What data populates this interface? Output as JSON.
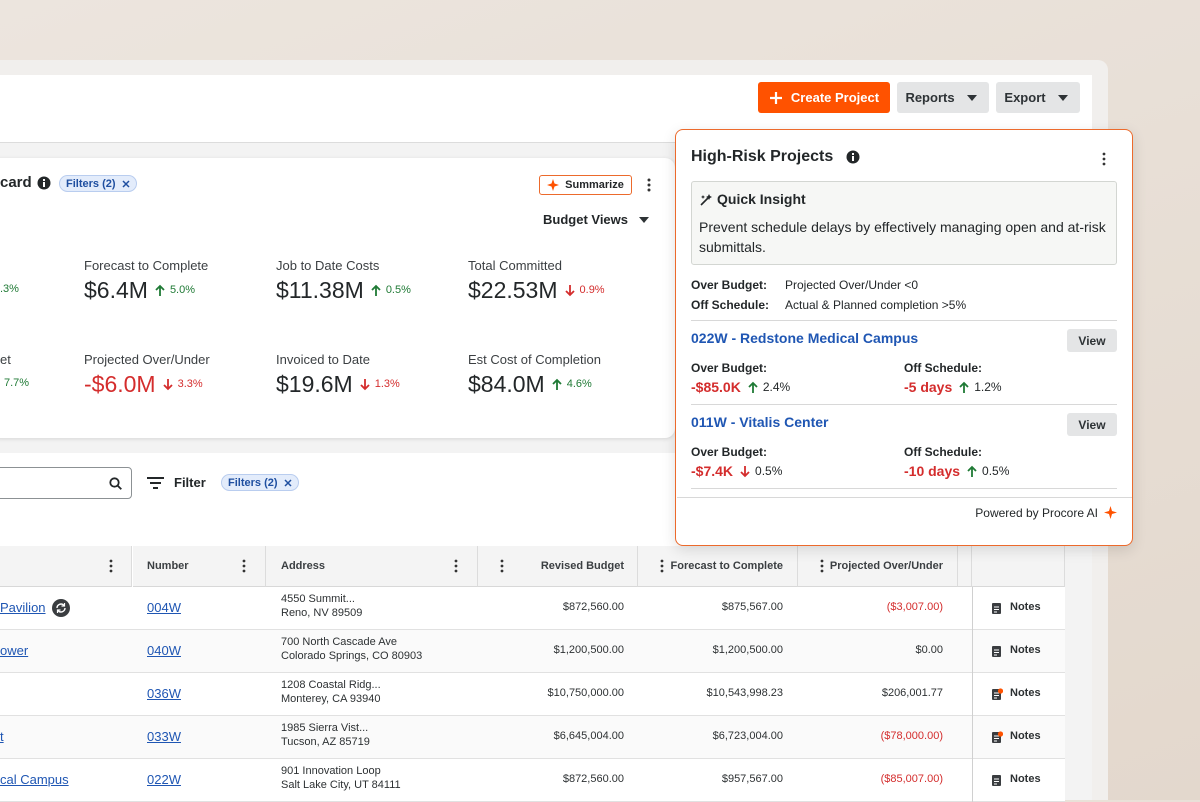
{
  "header": {
    "create": "Create Project",
    "reports": "Reports",
    "export": "Export"
  },
  "budget_card": {
    "title": "card",
    "filter_chip": "Filters (2)",
    "summarize": "Summarize",
    "views": "Budget Views",
    "edge_metrics": [
      {
        "change": ".3%",
        "trend": "up"
      },
      {
        "label": "et",
        "change": "7.7%",
        "trend": "up"
      }
    ],
    "metrics": [
      {
        "label": "Forecast to Complete",
        "value": "$6.4M",
        "change": "5.0%",
        "trend": "up"
      },
      {
        "label": "Job to Date Costs",
        "value": "$11.38M",
        "change": "0.5%",
        "trend": "up"
      },
      {
        "label": "Total Committed",
        "value": "$22.53M",
        "change": "0.9%",
        "trend": "down"
      },
      {
        "label": "Projected Over/Under",
        "value": "-$6.0M",
        "change": "3.3%",
        "trend": "down",
        "tone": "negative"
      },
      {
        "label": "Invoiced to Date",
        "value": "$19.6M",
        "change": "1.3%",
        "trend": "down"
      },
      {
        "label": "Est Cost of Completion",
        "value": "$84.0M",
        "change": "4.6%",
        "trend": "up"
      }
    ]
  },
  "table": {
    "filter": "Filter",
    "filter_chip": "Filters (2)",
    "columns": {
      "number": "Number",
      "address": "Address",
      "revised": "Revised Budget",
      "forecast": "Forecast to Complete",
      "projected": "Projected Over/Under"
    },
    "rows": [
      {
        "name": "Pavilion",
        "sync": true,
        "number": "004W",
        "address": [
          "4550 Summit...",
          "Reno, NV 89509"
        ],
        "revised": "$872,560.00",
        "forecast": "$875,567.00",
        "projected": "($3,007.00)",
        "tone": "negative",
        "notes": "Notes",
        "alert": false
      },
      {
        "name": "ower",
        "sync": false,
        "number": "040W",
        "address": [
          "700 North Cascade Ave",
          " Colorado Springs, CO 80903"
        ],
        "revised": "$1,200,500.00",
        "forecast": "$1,200,500.00",
        "projected": "$0.00",
        "notes": "Notes",
        "alert": false
      },
      {
        "sync": false,
        "number": "036W",
        "address": [
          "1208 Coastal Ridg...",
          "Monterey, CA 93940"
        ],
        "revised": "$10,750,000.00",
        "forecast": "$10,543,998.23",
        "projected": "$206,001.77",
        "notes": "Notes",
        "alert": true
      },
      {
        "name": "t",
        "sync": false,
        "number": "033W",
        "address": [
          "1985 Sierra Vist...",
          "Tucson, AZ 85719"
        ],
        "revised": "$6,645,004.00",
        "forecast": "$6,723,004.00",
        "projected": "($78,000.00)",
        "tone": "negative",
        "notes": "Notes",
        "alert": true
      },
      {
        "name": "cal Campus",
        "sync": false,
        "number": "022W",
        "address": [
          "901 Innovation Loop",
          "Salt Lake City, UT 84111"
        ],
        "revised": "$872,560.00",
        "forecast": "$957,567.00",
        "projected": "($85,007.00)",
        "tone": "negative",
        "notes": "Notes",
        "alert": false
      }
    ]
  },
  "risk_panel": {
    "title": "High-Risk Projects",
    "insight_title": "Quick Insight",
    "insight_text": "Prevent schedule delays by effectively managing open and at-risk submittals.",
    "criteria": [
      {
        "label": "Over Budget:",
        "text": "Projected Over/Under <0"
      },
      {
        "label": "Off Schedule:",
        "text": "Actual & Planned completion >5%"
      }
    ],
    "projects": [
      {
        "name": "022W - Redstone Medical Campus",
        "view": "View",
        "budget_label": "Over Budget:",
        "budget_value": "-$85.0K",
        "budget_change": "2.4%",
        "budget_trend": "up",
        "schedule_label": "Off Schedule:",
        "schedule_value": "-5 days",
        "schedule_change": "1.2%",
        "schedule_trend": "up"
      },
      {
        "name": "011W - Vitalis Center",
        "view": "View",
        "budget_label": "Over Budget:",
        "budget_value": "-$7.4K",
        "budget_change": "0.5%",
        "budget_trend": "down",
        "schedule_label": "Off Schedule:",
        "schedule_value": "-10 days",
        "schedule_change": "0.5%",
        "schedule_trend": "up"
      }
    ],
    "footer": "Powered by Procore AI"
  }
}
